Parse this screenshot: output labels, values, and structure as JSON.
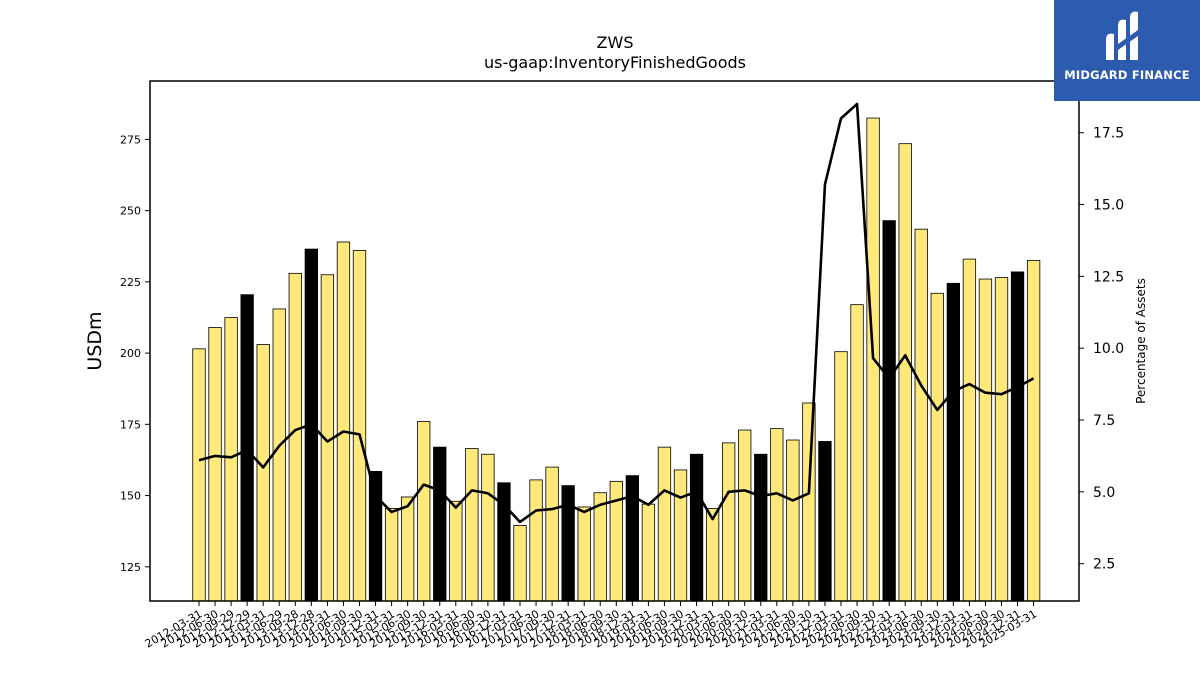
{
  "chart_data": {
    "type": "bar",
    "title": "ZWS",
    "subtitle": "us-gaap:InventoryFinishedGoods",
    "ylabel": "USDm",
    "y2label": "Percentage of Assets",
    "ylim": [
      113,
      295.5
    ],
    "y2lim": [
      1.2,
      19.3
    ],
    "yticks": [
      125,
      150,
      175,
      200,
      225,
      250,
      275
    ],
    "y2ticks": [
      2.5,
      5.0,
      7.5,
      10.0,
      12.5,
      15.0,
      17.5
    ],
    "grid": false,
    "categories": [
      "2012-03-31",
      "2012-06-30",
      "2012-09-29",
      "2012-12-29",
      "2013-03-31",
      "2013-06-29",
      "2013-09-28",
      "2013-12-28",
      "2014-03-31",
      "2014-06-30",
      "2014-09-30",
      "2014-12-31",
      "2015-03-31",
      "2015-06-30",
      "2015-09-30",
      "2015-12-31",
      "2016-03-31",
      "2016-06-30",
      "2016-09-30",
      "2016-12-31",
      "2017-03-31",
      "2017-06-30",
      "2017-09-30",
      "2017-12-31",
      "2018-03-31",
      "2018-06-30",
      "2018-09-30",
      "2018-12-31",
      "2019-03-31",
      "2019-06-30",
      "2019-09-30",
      "2019-12-31",
      "2020-03-31",
      "2020-06-30",
      "2020-09-30",
      "2020-12-31",
      "2021-03-31",
      "2021-06-30",
      "2021-09-30",
      "2021-12-31",
      "2022-03-31",
      "2022-06-30",
      "2022-09-30",
      "2022-12-31",
      "2023-03-31",
      "2023-06-30",
      "2023-09-30",
      "2023-12-31",
      "2024-03-31",
      "2024-06-30",
      "2024-09-30",
      "2024-12-31",
      "2025-03-31"
    ],
    "series": [
      {
        "kind": "bar",
        "values": [
          201.5,
          209,
          212.5,
          220.5,
          203,
          215.5,
          228,
          236.5,
          227.5,
          239,
          236,
          158.5,
          145.5,
          149.5,
          176,
          167,
          148,
          166.5,
          164.5,
          154.5,
          139.5,
          155.5,
          160,
          153.5,
          146,
          151,
          155,
          157,
          147,
          167,
          159,
          164.5,
          145.5,
          168.5,
          173,
          164.5,
          173.5,
          169.5,
          182.5,
          169,
          200.5,
          217,
          282.5,
          246.5,
          273.5,
          243.5,
          221,
          224.5,
          233,
          226,
          226.5,
          228.5,
          232.5
        ],
        "highlight": [
          false,
          false,
          false,
          true,
          false,
          false,
          false,
          true,
          false,
          false,
          false,
          true,
          false,
          false,
          false,
          true,
          false,
          false,
          false,
          true,
          false,
          false,
          false,
          true,
          false,
          false,
          false,
          true,
          false,
          false,
          false,
          true,
          false,
          false,
          false,
          true,
          false,
          false,
          false,
          true,
          false,
          false,
          false,
          true,
          false,
          false,
          false,
          true,
          false,
          false,
          false,
          true,
          false
        ]
      },
      {
        "kind": "line",
        "axis": "right",
        "values": [
          6.1,
          6.25,
          6.2,
          6.45,
          5.85,
          6.6,
          7.15,
          7.35,
          6.75,
          7.1,
          7.0,
          4.85,
          4.3,
          4.5,
          5.25,
          5.05,
          4.45,
          5.05,
          4.95,
          4.55,
          3.95,
          4.35,
          4.4,
          4.55,
          4.3,
          4.55,
          4.7,
          4.85,
          4.55,
          5.05,
          4.8,
          5.0,
          4.05,
          5.0,
          5.05,
          4.85,
          4.95,
          4.7,
          4.95,
          15.7,
          18.0,
          18.5,
          9.65,
          8.95,
          9.75,
          8.7,
          7.85,
          8.5,
          8.75,
          8.45,
          8.4,
          8.65,
          8.95
        ]
      }
    ],
    "colors": {
      "bar": "#ffe97a",
      "bar_highlight": "#000000",
      "bar_edge": "#000000",
      "line": "#000000"
    },
    "logo_text": "MIDGARD FINANCE",
    "logo_bg": "#2d5bb0"
  }
}
